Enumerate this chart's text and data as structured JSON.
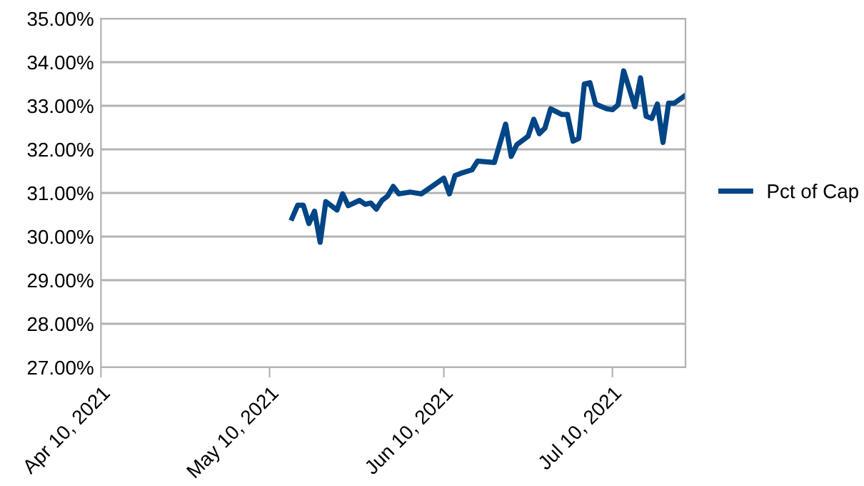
{
  "chart_data": {
    "type": "line",
    "x": [
      "2021-05-14",
      "2021-05-15",
      "2021-05-16",
      "2021-05-17",
      "2021-05-18",
      "2021-05-19",
      "2021-05-20",
      "2021-05-22",
      "2021-05-23",
      "2021-05-24",
      "2021-05-26",
      "2021-05-27",
      "2021-05-28",
      "2021-05-29",
      "2021-05-30",
      "2021-05-31",
      "2021-06-01",
      "2021-06-02",
      "2021-06-04",
      "2021-06-06",
      "2021-06-08",
      "2021-06-10",
      "2021-06-11",
      "2021-06-12",
      "2021-06-13",
      "2021-06-15",
      "2021-06-16",
      "2021-06-19",
      "2021-06-21",
      "2021-06-22",
      "2021-06-23",
      "2021-06-25",
      "2021-06-26",
      "2021-06-27",
      "2021-06-28",
      "2021-06-29",
      "2021-07-01",
      "2021-07-02",
      "2021-07-03",
      "2021-07-04",
      "2021-07-05",
      "2021-07-06",
      "2021-07-07",
      "2021-07-09",
      "2021-07-10",
      "2021-07-11",
      "2021-07-12",
      "2021-07-14",
      "2021-07-15",
      "2021-07-16",
      "2021-07-17",
      "2021-07-18",
      "2021-07-19",
      "2021-07-20",
      "2021-07-21",
      "2021-07-23"
    ],
    "series": [
      {
        "name": "Pct of Cap",
        "color": "#004586",
        "values": [
          30.42,
          30.72,
          30.72,
          30.3,
          30.58,
          29.87,
          30.8,
          30.61,
          30.98,
          30.71,
          30.83,
          30.74,
          30.77,
          30.63,
          30.83,
          30.93,
          31.15,
          30.98,
          31.02,
          30.98,
          31.16,
          31.34,
          30.98,
          31.4,
          31.45,
          31.53,
          31.73,
          31.7,
          32.58,
          31.84,
          32.11,
          32.3,
          32.69,
          32.36,
          32.49,
          32.93,
          32.8,
          32.8,
          32.19,
          32.25,
          33.5,
          33.53,
          33.04,
          32.93,
          32.91,
          33.02,
          33.8,
          32.98,
          33.64,
          32.76,
          32.71,
          33.04,
          32.16,
          33.06,
          33.06,
          33.24
        ]
      }
    ],
    "xlim": [
      "2021-04-10",
      "2021-07-23"
    ],
    "xticks": [
      {
        "value": "2021-04-10",
        "label": "Apr 10, 2021"
      },
      {
        "value": "2021-05-10",
        "label": "May 10, 2021"
      },
      {
        "value": "2021-06-10",
        "label": "Jun 10, 2021"
      },
      {
        "value": "2021-07-10",
        "label": "Jul 10, 2021"
      }
    ],
    "ylim": [
      27,
      35
    ],
    "yticks": [
      {
        "value": 27,
        "label": "27.00%"
      },
      {
        "value": 28,
        "label": "28.00%"
      },
      {
        "value": 29,
        "label": "29.00%"
      },
      {
        "value": 30,
        "label": "30.00%"
      },
      {
        "value": 31,
        "label": "31.00%"
      },
      {
        "value": 32,
        "label": "32.00%"
      },
      {
        "value": 33,
        "label": "33.00%"
      },
      {
        "value": 34,
        "label": "34.00%"
      },
      {
        "value": 35,
        "label": "35.00%"
      }
    ],
    "grid": "y",
    "legend": "right",
    "marker": "none",
    "line_style": "solid"
  }
}
